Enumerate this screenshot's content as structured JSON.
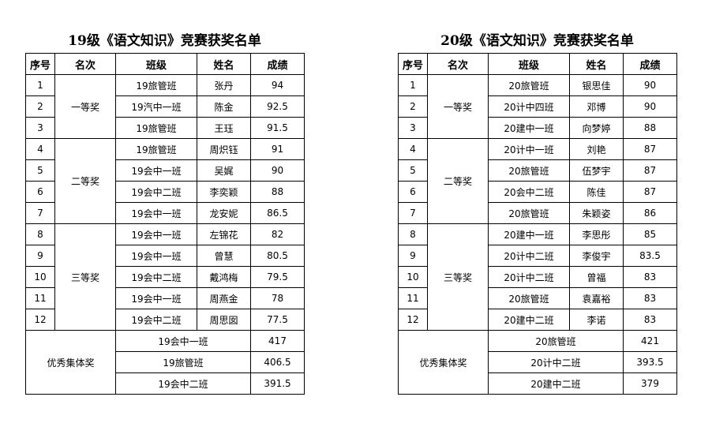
{
  "sheets": [
    {
      "title": "19级《语文知识》竞赛获奖名单",
      "headers": [
        "序号",
        "名次",
        "班级",
        "姓名",
        "成绩"
      ],
      "groups": [
        {
          "label": "一等奖",
          "rows": [
            [
              "1",
              "19旅管班",
              "张丹",
              "94"
            ],
            [
              "2",
              "19汽中一班",
              "陈金",
              "92.5"
            ],
            [
              "3",
              "19旅管班",
              "王珏",
              "91.5"
            ]
          ]
        },
        {
          "label": "二等奖",
          "rows": [
            [
              "4",
              "19旅管班",
              "周炽钰",
              "91"
            ],
            [
              "5",
              "19会中一班",
              "吴娓",
              "90"
            ],
            [
              "6",
              "19会中二班",
              "李奕颖",
              "88"
            ],
            [
              "7",
              "19会中一班",
              "龙安妮",
              "86.5"
            ]
          ]
        },
        {
          "label": "三等奖",
          "rows": [
            [
              "8",
              "19会中一班",
              "左锦花",
              "82"
            ],
            [
              "9",
              "19会中一班",
              "曾慧",
              "80.5"
            ],
            [
              "10",
              "19会中二班",
              "戴鸿梅",
              "79.5"
            ],
            [
              "11",
              "19会中一班",
              "周燕金",
              "78"
            ],
            [
              "12",
              "19会中二班",
              "周思囡",
              "77.5"
            ]
          ]
        }
      ],
      "collective": {
        "label": "优秀集体奖",
        "rows": [
          [
            "19会中一班",
            "417"
          ],
          [
            "19旅管班",
            "406.5"
          ],
          [
            "19会中二班",
            "391.5"
          ]
        ]
      }
    },
    {
      "title": "20级《语文知识》竞赛获奖名单",
      "headers": [
        "序号",
        "名次",
        "班级",
        "姓名",
        "成绩"
      ],
      "groups": [
        {
          "label": "一等奖",
          "rows": [
            [
              "1",
              "20旅管班",
              "银思佳",
              "90"
            ],
            [
              "2",
              "20计中四班",
              "邓博",
              "90"
            ],
            [
              "3",
              "20建中一班",
              "向梦婷",
              "88"
            ]
          ]
        },
        {
          "label": "二等奖",
          "rows": [
            [
              "4",
              "20计中一班",
              "刘艳",
              "87"
            ],
            [
              "5",
              "20旅管班",
              "伍梦宇",
              "87"
            ],
            [
              "6",
              "20会中二班",
              "陈佳",
              "87"
            ],
            [
              "7",
              "20旅管班",
              "朱颖姿",
              "86"
            ]
          ]
        },
        {
          "label": "三等奖",
          "rows": [
            [
              "8",
              "20建中一班",
              "李思彤",
              "85"
            ],
            [
              "9",
              "20计中二班",
              "李俊宇",
              "83.5"
            ],
            [
              "10",
              "20计中二班",
              "曾福",
              "83"
            ],
            [
              "11",
              "20旅管班",
              "袁嘉裕",
              "83"
            ],
            [
              "12",
              "20建中二班",
              "李诺",
              "83"
            ]
          ]
        }
      ],
      "collective": {
        "label": "优秀集体奖",
        "rows": [
          [
            "20旅管班",
            "421"
          ],
          [
            "20计中二班",
            "393.5"
          ],
          [
            "20建中二班",
            "379"
          ]
        ]
      }
    }
  ]
}
